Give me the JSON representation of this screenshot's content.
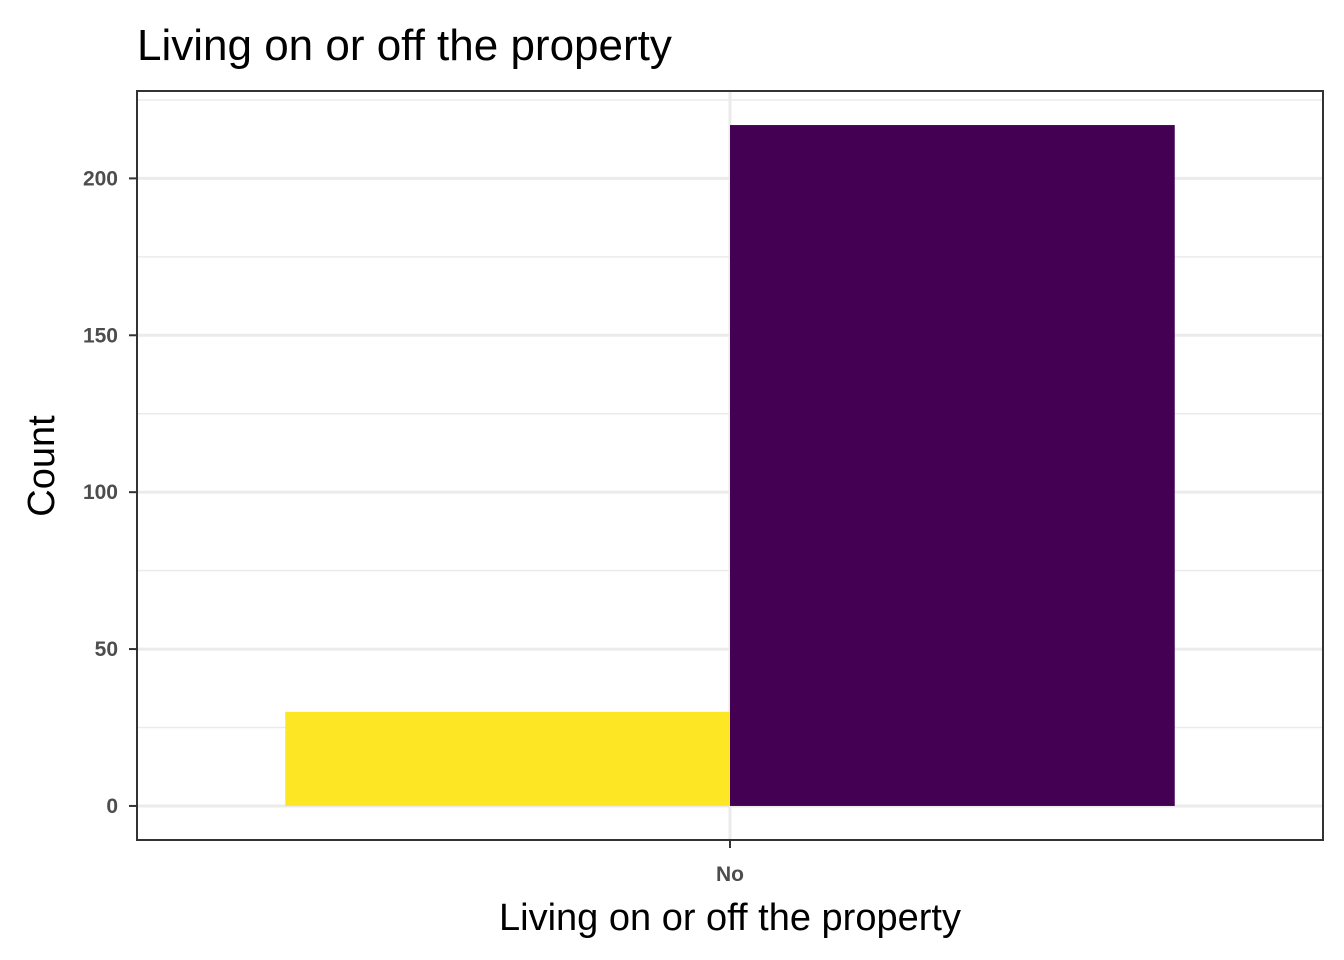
{
  "chart_data": {
    "type": "bar",
    "title": "Living on or off the property",
    "xlabel": "Living on or off the property",
    "ylabel": "Count",
    "categories": [
      "No"
    ],
    "position": "dodge",
    "series": [
      {
        "values": [
          30
        ],
        "color": "#FDE725"
      },
      {
        "values": [
          217
        ],
        "color": "#440154"
      }
    ],
    "ylim": [
      -10.85,
      227.85
    ],
    "yticks": [
      0,
      50,
      100,
      150,
      200
    ],
    "grid": true,
    "legend": "none"
  }
}
